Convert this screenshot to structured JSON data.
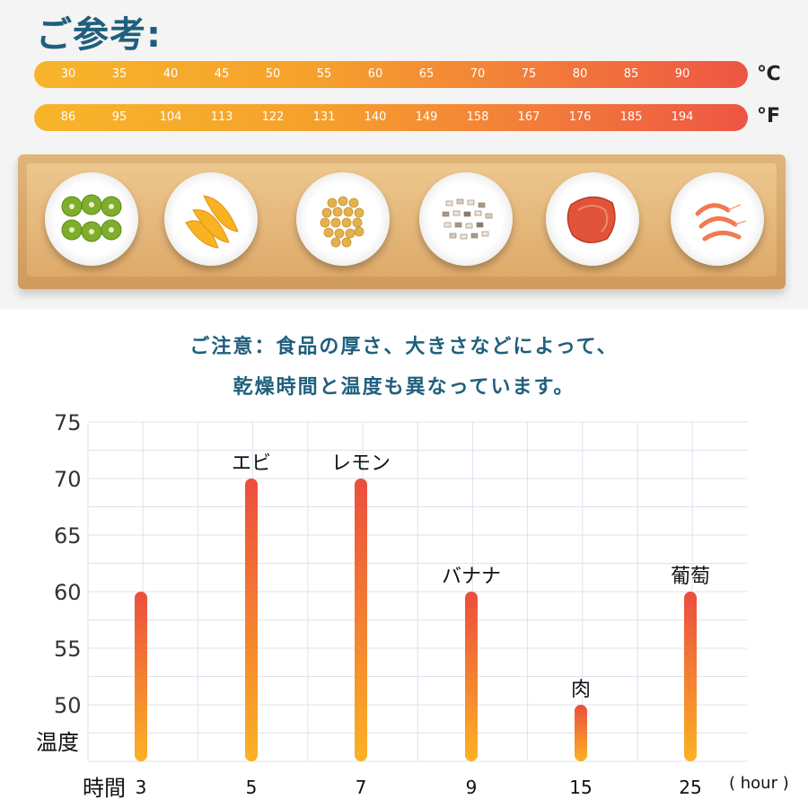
{
  "header": {
    "title": "ご参考:",
    "celsius_unit": "℃",
    "fahrenheit_unit": "°F",
    "celsius_ticks": [
      "30",
      "35",
      "40",
      "45",
      "50",
      "55",
      "60",
      "65",
      "70",
      "75",
      "80",
      "85",
      "90"
    ],
    "fahrenheit_ticks": [
      "86",
      "95",
      "104",
      "113",
      "122",
      "131",
      "140",
      "149",
      "158",
      "167",
      "176",
      "185",
      "194"
    ]
  },
  "tray": {
    "plates": [
      "kiwi",
      "mango",
      "chickpeas",
      "grain",
      "meat",
      "shrimp"
    ]
  },
  "note": {
    "line1": "ご注意：食品の厚さ、大きさなどによって、",
    "line2": "乾燥時間と温度も異なっています。"
  },
  "colors": {
    "title": "#1f5f7d",
    "bar_top": "#ec4d3e",
    "bar_bottom": "#fbb224",
    "grid": "#dde3ee"
  },
  "chart_data": {
    "type": "bar",
    "categories": [
      "3",
      "5",
      "7",
      "9",
      "15",
      "25"
    ],
    "values": [
      60,
      70,
      70,
      60,
      50,
      60
    ],
    "bar_labels": [
      "",
      "エビ",
      "レモン",
      "バナナ",
      "肉",
      "葡萄"
    ],
    "yticks": [
      50,
      55,
      60,
      65,
      70,
      75
    ],
    "ylim": [
      45,
      75
    ],
    "ylabel": "温度",
    "xlabel": "時間",
    "x_unit": "( hour )",
    "grid": true
  }
}
